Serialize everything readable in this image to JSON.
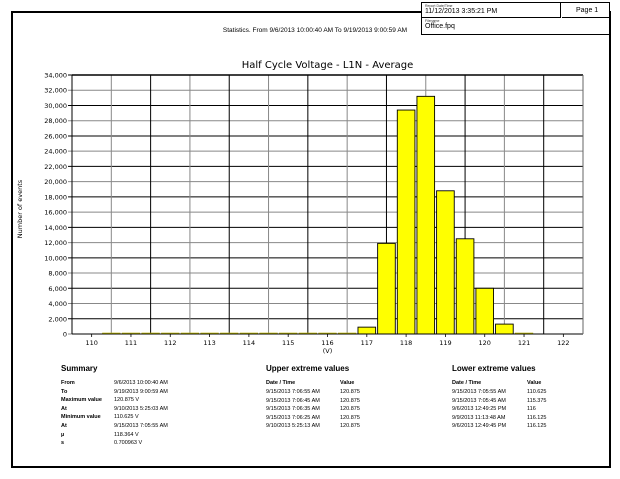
{
  "header": {
    "report_datetime_caption": "Report Date/Time",
    "report_datetime": "11/12/2013 3:35:21 PM",
    "page": "Page 1",
    "filename_caption": "Filename",
    "filename": "Office.fpq",
    "statistics_title": "Statistics. From 9/6/2013 10:00:40 AM To 9/19/2013 9:00:59 AM"
  },
  "chart_data": {
    "type": "bar",
    "title": "Half Cycle Voltage  -  L1N  -  Average",
    "xlabel": "(V)",
    "ylabel": "Number of events",
    "ylim": [
      0,
      34000
    ],
    "yticks": [
      0,
      2000,
      4000,
      6000,
      8000,
      10000,
      12000,
      14000,
      16000,
      18000,
      20000,
      22000,
      24000,
      26000,
      28000,
      30000,
      32000,
      34000
    ],
    "ytick_labels": [
      "0",
      "2,000",
      "4,000",
      "6,000",
      "8,000",
      "10,000",
      "12,000",
      "14,000",
      "16,000",
      "18,000",
      "20,000",
      "22,000",
      "24,000",
      "26,000",
      "28,000",
      "30,000",
      "32,000",
      "34,000"
    ],
    "xticks": [
      110,
      111,
      112,
      113,
      114,
      115,
      116,
      117,
      118,
      119,
      120,
      121,
      122
    ],
    "xlim": [
      109.5,
      122.5
    ],
    "grid": true,
    "bar_color": "#FFFF00",
    "bin_width": 0.5,
    "bins": [
      110.5,
      111,
      111.5,
      112,
      112.5,
      113,
      113.5,
      114,
      114.5,
      115,
      115.5,
      116,
      116.5,
      117,
      117.5,
      118,
      118.5,
      119,
      119.5,
      120,
      120.5,
      121
    ],
    "values": [
      0,
      5,
      5,
      5,
      5,
      5,
      5,
      5,
      5,
      5,
      5,
      10,
      60,
      900,
      11900,
      29400,
      31200,
      18800,
      12500,
      6000,
      1300,
      10
    ]
  },
  "summary": {
    "title": "Summary",
    "rows": [
      {
        "label": "From",
        "value": "9/6/2013 10:00:40 AM"
      },
      {
        "label": "To",
        "value": "9/19/2013 9:00:59 AM"
      },
      {
        "label": "Maximum value",
        "value": "120.875  V"
      },
      {
        "label": "At",
        "value": "9/10/2013 5:25:03 AM"
      },
      {
        "label": "Minimum value",
        "value": "110.625  V"
      },
      {
        "label": "At",
        "value": "9/15/2013 7:05:55 AM"
      },
      {
        "label": "µ",
        "value": "118.364 V"
      },
      {
        "label": "s",
        "value": "0.700963 V"
      }
    ]
  },
  "upper_extremes": {
    "title": "Upper extreme values",
    "col_datetime": "Date / Time",
    "col_value": "Value",
    "rows": [
      {
        "datetime": "9/15/2013 7:06:55 AM",
        "value": "120.875"
      },
      {
        "datetime": "9/15/2013 7:06:45 AM",
        "value": "120.875"
      },
      {
        "datetime": "9/15/2013 7:06:35 AM",
        "value": "120.875"
      },
      {
        "datetime": "9/15/2013 7:06:25 AM",
        "value": "120.875"
      },
      {
        "datetime": "9/10/2013 5:25:13 AM",
        "value": "120.875"
      }
    ]
  },
  "lower_extremes": {
    "title": "Lower extreme values",
    "col_datetime": "Date / Time",
    "col_value": "Value",
    "rows": [
      {
        "datetime": "9/15/2013 7:05:55 AM",
        "value": "110.625"
      },
      {
        "datetime": "9/15/2013 7:05:45 AM",
        "value": "115.375"
      },
      {
        "datetime": "9/6/2013 12:49:25 PM",
        "value": "116"
      },
      {
        "datetime": "9/9/2013 11:13:48 AM",
        "value": "116.125"
      },
      {
        "datetime": "9/6/2013 12:49:45 PM",
        "value": "116.125"
      }
    ]
  }
}
